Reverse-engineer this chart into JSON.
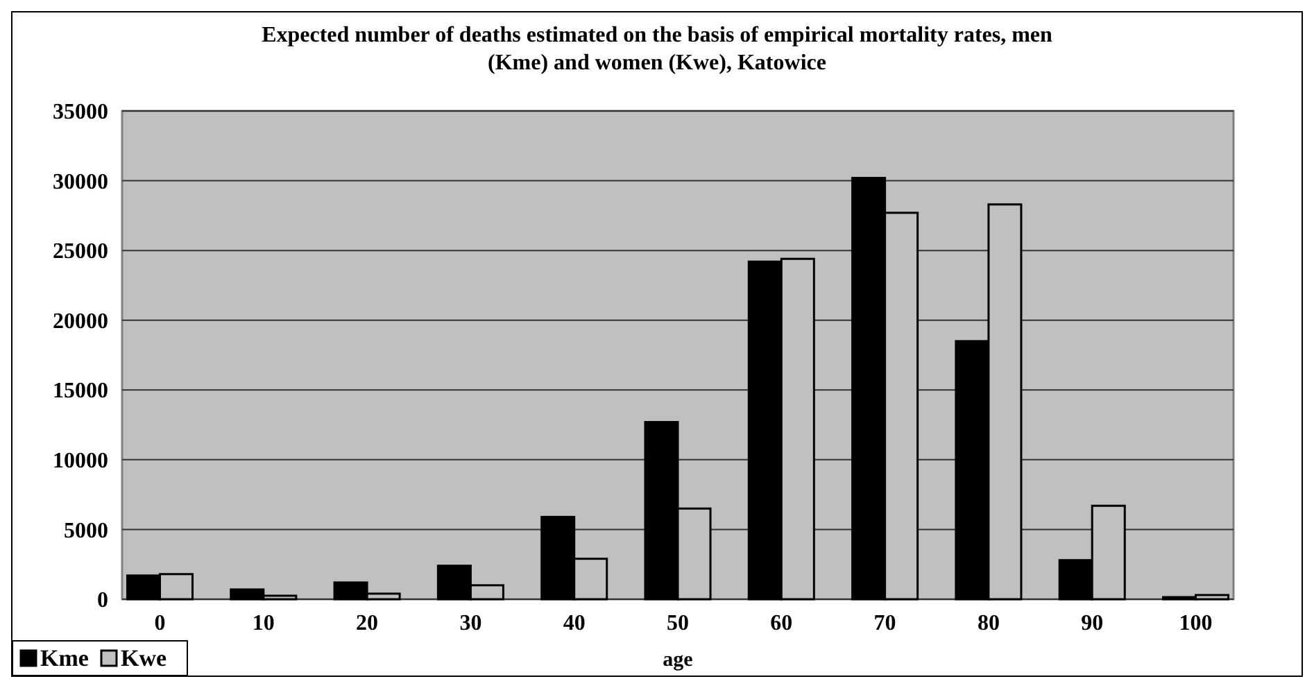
{
  "chart_data": {
    "type": "bar",
    "title": "Expected number of deaths estimated on the basis of empirical mortality rates, men (Kme) and women (Kwe), Katowice",
    "xlabel": "age",
    "categories": [
      "0",
      "10",
      "20",
      "30",
      "40",
      "50",
      "60",
      "70",
      "80",
      "90",
      "100"
    ],
    "series": [
      {
        "name": "Kme",
        "color": "#000000",
        "values": [
          1700,
          700,
          1200,
          2400,
          5900,
          12700,
          24200,
          30200,
          18500,
          2800,
          150
        ]
      },
      {
        "name": "Kwe",
        "color": "#c0c0c0",
        "values": [
          1800,
          250,
          400,
          1000,
          2900,
          6500,
          24400,
          27700,
          28300,
          6700,
          300
        ]
      }
    ],
    "ylim": [
      0,
      35000
    ],
    "yticks": [
      0,
      5000,
      10000,
      15000,
      20000,
      25000,
      30000,
      35000
    ],
    "grid": "y",
    "legend": "bottom left"
  }
}
